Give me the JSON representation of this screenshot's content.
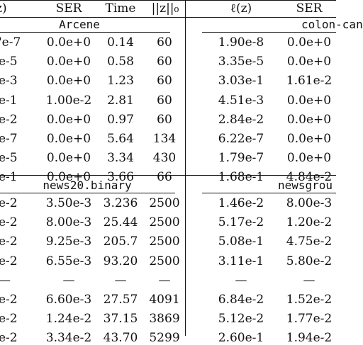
{
  "header": [
    "z)",
    "SER",
    "Time",
    "||z||₀",
    "ℓ(z)",
    "SER"
  ],
  "section1": {
    "left_title": "Arcene",
    "right_title": "colon-can",
    "rows": [
      [
        "'e-7",
        "0.0e+0",
        "0.14",
        "60",
        "1.90e-8",
        "0.0e+0"
      ],
      [
        "e-5",
        "0.0e+0",
        "0.58",
        "60",
        "3.35e-5",
        "0.0e+0"
      ],
      [
        "e-3",
        "0.0e+0",
        "1.23",
        "60",
        "3.03e-1",
        "1.61e-2"
      ],
      [
        "e-1",
        "1.00e-2",
        "2.81",
        "60",
        "4.51e-3",
        "0.0e+0"
      ],
      [
        "e-2",
        "0.0e+0",
        "0.97",
        "60",
        "2.84e-2",
        "0.0e+0"
      ],
      [
        "e-7",
        "0.0e+0",
        "5.64",
        "134",
        "6.22e-7",
        "0.0e+0"
      ],
      [
        "e-5",
        "0.0e+0",
        "3.34",
        "430",
        "1.79e-7",
        "0.0e+0"
      ],
      [
        "e-1",
        "0.0e+0",
        "3.66",
        "66",
        "1.68e-1",
        "4.84e-2"
      ]
    ]
  },
  "section2": {
    "left_title": "news20.binary",
    "right_title": "newsgrou",
    "rows": [
      [
        "e-2",
        "3.50e-3",
        "3.236",
        "2500",
        "1.46e-2",
        "8.00e-3"
      ],
      [
        "e-2",
        "8.00e-3",
        "25.44",
        "2500",
        "5.17e-2",
        "1.20e-2"
      ],
      [
        "e-2",
        "9.25e-3",
        "205.7",
        "2500",
        "5.08e-1",
        "4.75e-2"
      ],
      [
        "e-2",
        "6.55e-3",
        "93.20",
        "2500",
        "3.11e-1",
        "5.80e-2"
      ],
      [
        "—",
        "—",
        "—",
        "—",
        "—",
        "—"
      ],
      [
        "e-2",
        "6.60e-3",
        "27.57",
        "4091",
        "6.84e-2",
        "1.52e-2"
      ],
      [
        "e-2",
        "1.24e-2",
        "37.15",
        "3869",
        "5.12e-2",
        "1.77e-2"
      ],
      [
        "e-2",
        "3.34e-2",
        "43.70",
        "5299",
        "2.60e-1",
        "1.94e-2"
      ]
    ]
  }
}
